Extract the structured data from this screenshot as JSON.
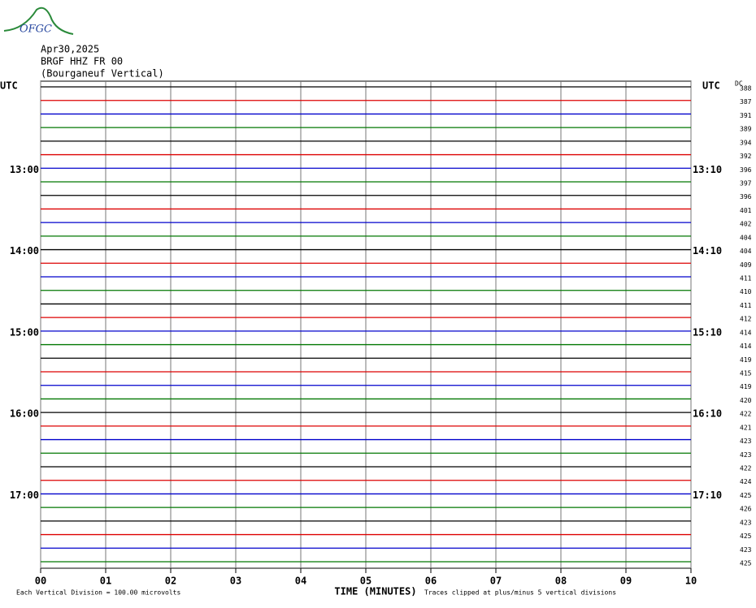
{
  "chart_data": {
    "type": "helicorder",
    "logo": "OFGC",
    "title_lines": [
      "Apr30,2025",
      "BRGF HHZ FR 00",
      "(Bourganeuf Vertical)"
    ],
    "left_timezone": "UTC",
    "right_timezone": "UTC",
    "dc_header": "DC",
    "xlabel": "TIME (MINUTES)",
    "footer_left": "Each Vertical Division =  100.00 microvolts",
    "footer_right": "Traces clipped at plus/minus 5 vertical divisions",
    "xlim": [
      0,
      10
    ],
    "xticks": [
      {
        "value": 0,
        "label": "00"
      },
      {
        "value": 1,
        "label": "01"
      },
      {
        "value": 2,
        "label": "02"
      },
      {
        "value": 3,
        "label": "03"
      },
      {
        "value": 4,
        "label": "04"
      },
      {
        "value": 5,
        "label": "05"
      },
      {
        "value": 6,
        "label": "06"
      },
      {
        "value": 7,
        "label": "07"
      },
      {
        "value": 8,
        "label": "08"
      },
      {
        "value": 9,
        "label": "09"
      },
      10
    ],
    "grid": true,
    "trace_colors": [
      "#000000",
      "#dd0000",
      "#0000cc",
      "#007700"
    ],
    "left_labels": [
      null,
      null,
      null,
      null,
      null,
      null,
      "13:00",
      null,
      null,
      null,
      null,
      null,
      "14:00",
      null,
      null,
      null,
      null,
      null,
      "15:00",
      null,
      null,
      null,
      null,
      null,
      "16:00",
      null,
      null,
      null,
      null,
      null,
      "17:00",
      null,
      null,
      null,
      null,
      null
    ],
    "right_labels": [
      null,
      null,
      null,
      null,
      null,
      null,
      "13:10",
      null,
      null,
      null,
      null,
      null,
      "14:10",
      null,
      null,
      null,
      null,
      null,
      "15:10",
      null,
      null,
      null,
      null,
      null,
      "16:10",
      null,
      null,
      null,
      null,
      null,
      "17:10",
      null,
      null,
      null,
      null,
      null
    ],
    "dc": [
      388,
      387,
      391,
      389,
      394,
      392,
      396,
      397,
      396,
      401,
      402,
      404,
      404,
      409,
      411,
      410,
      411,
      412,
      414,
      414,
      419,
      415,
      419,
      420,
      422,
      421,
      423,
      423,
      422,
      424,
      425,
      426,
      423,
      425,
      423,
      425
    ]
  }
}
